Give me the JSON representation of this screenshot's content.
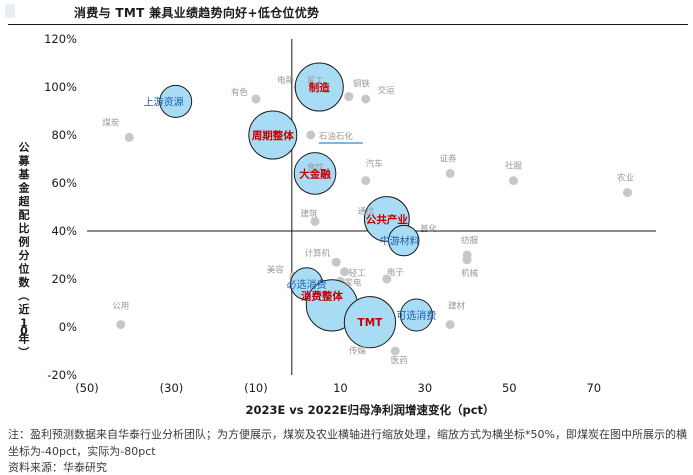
{
  "title": "消费与 TMT 兼具业绩趋势向好+低仓位优势",
  "note": "注：盈利预测数据来自华泰行业分析团队；为方便展示，煤炭及农业横轴进行缩放处理，缩放方式为横坐标*50%，即煤炭在图中所展示的横坐标为-40pct，实际为-80pct",
  "source": "资料来源：华泰研究",
  "colors": {
    "bubble_fill": "#a8dcf5",
    "bubble_stroke": "#1a1a1a",
    "point_color": "#c7c7c7",
    "red_label": "#c00000",
    "blue_label": "#1f5fa8",
    "gray_label": "#999999",
    "underline": "#2a8cd8"
  },
  "chart_data": {
    "type": "scatter",
    "title": "",
    "xlabel": "2023E vs 2022E归母净利润增速变化（pct）",
    "ylabel": "公募基金超配比例分位数（近10年）",
    "xlim": [
      -50,
      80
    ],
    "ylim": [
      -0.2,
      1.2
    ],
    "x_ticks": [
      -50,
      -30,
      -10,
      10,
      30,
      50,
      70
    ],
    "x_tick_labels": [
      "(50)",
      "(30)",
      "(10)",
      "10",
      "30",
      "50",
      "70"
    ],
    "y_ticks": [
      -0.2,
      0,
      0.2,
      0.4,
      0.6,
      0.8,
      1.0,
      1.2
    ],
    "y_tick_labels": [
      "-20%",
      "0%",
      "20%",
      "40%",
      "60%",
      "80%",
      "100%",
      "120%"
    ],
    "grid": false,
    "industries": [
      {
        "name": "电新",
        "x": 0,
        "y": 1.0
      },
      {
        "name": "军工",
        "x": 2,
        "y": 0.99
      },
      {
        "name": "有色",
        "x": -10,
        "y": 0.95
      },
      {
        "name": "钢铁",
        "x": 12,
        "y": 0.96
      },
      {
        "name": "交运",
        "x": 16,
        "y": 0.95
      },
      {
        "name": "煤炭",
        "x": -40,
        "y": 0.79
      },
      {
        "name": "石油石化",
        "x": 3,
        "y": 0.8
      },
      {
        "name": "食饮",
        "x": 3,
        "y": 0.63
      },
      {
        "name": "汽车",
        "x": 16,
        "y": 0.61
      },
      {
        "name": "证券",
        "x": 36,
        "y": 0.64
      },
      {
        "name": "社服",
        "x": 51,
        "y": 0.61
      },
      {
        "name": "农业",
        "x": 78,
        "y": 0.56
      },
      {
        "name": "建筑",
        "x": 4,
        "y": 0.44
      },
      {
        "name": "通信",
        "x": 17,
        "y": 0.42
      },
      {
        "name": "基化",
        "x": 26,
        "y": 0.39
      },
      {
        "name": "纺服",
        "x": 40,
        "y": 0.3
      },
      {
        "name": "机械",
        "x": 40,
        "y": 0.28
      },
      {
        "name": "计算机",
        "x": 9,
        "y": 0.27
      },
      {
        "name": "轻工",
        "x": 11,
        "y": 0.23
      },
      {
        "name": "电子",
        "x": 21,
        "y": 0.2
      },
      {
        "name": "美容",
        "x": -1,
        "y": 0.21
      },
      {
        "name": "家电",
        "x": 10,
        "y": 0.19
      },
      {
        "name": "公用",
        "x": -42,
        "y": 0.01
      },
      {
        "name": "建材",
        "x": 36,
        "y": 0.01
      },
      {
        "name": "传媒",
        "x": 15,
        "y": -0.06
      },
      {
        "name": "医药",
        "x": 23,
        "y": -0.1
      }
    ],
    "sectors": [
      {
        "name": "上游资源",
        "x": -29,
        "y": 0.94,
        "size": 1
      },
      {
        "name": "制造",
        "x": 5,
        "y": 1.0,
        "size": 1.5
      },
      {
        "name": "周期整体",
        "x": -6,
        "y": 0.8,
        "size": 1.5
      },
      {
        "name": "大金融",
        "x": 4,
        "y": 0.64,
        "size": 1.3
      },
      {
        "name": "公共产业",
        "x": 21,
        "y": 0.45,
        "size": 1.4
      },
      {
        "name": "中游材料",
        "x": 25,
        "y": 0.36,
        "size": 0.95
      },
      {
        "name": "必选消费",
        "x": 2,
        "y": 0.18,
        "size": 1
      },
      {
        "name": "消费整体",
        "x": 8,
        "y": 0.09,
        "size": 1.6
      },
      {
        "name": "TMT",
        "x": 17,
        "y": 0.02,
        "size": 1.6
      },
      {
        "name": "可选消费",
        "x": 28,
        "y": 0.05,
        "size": 1
      }
    ]
  }
}
